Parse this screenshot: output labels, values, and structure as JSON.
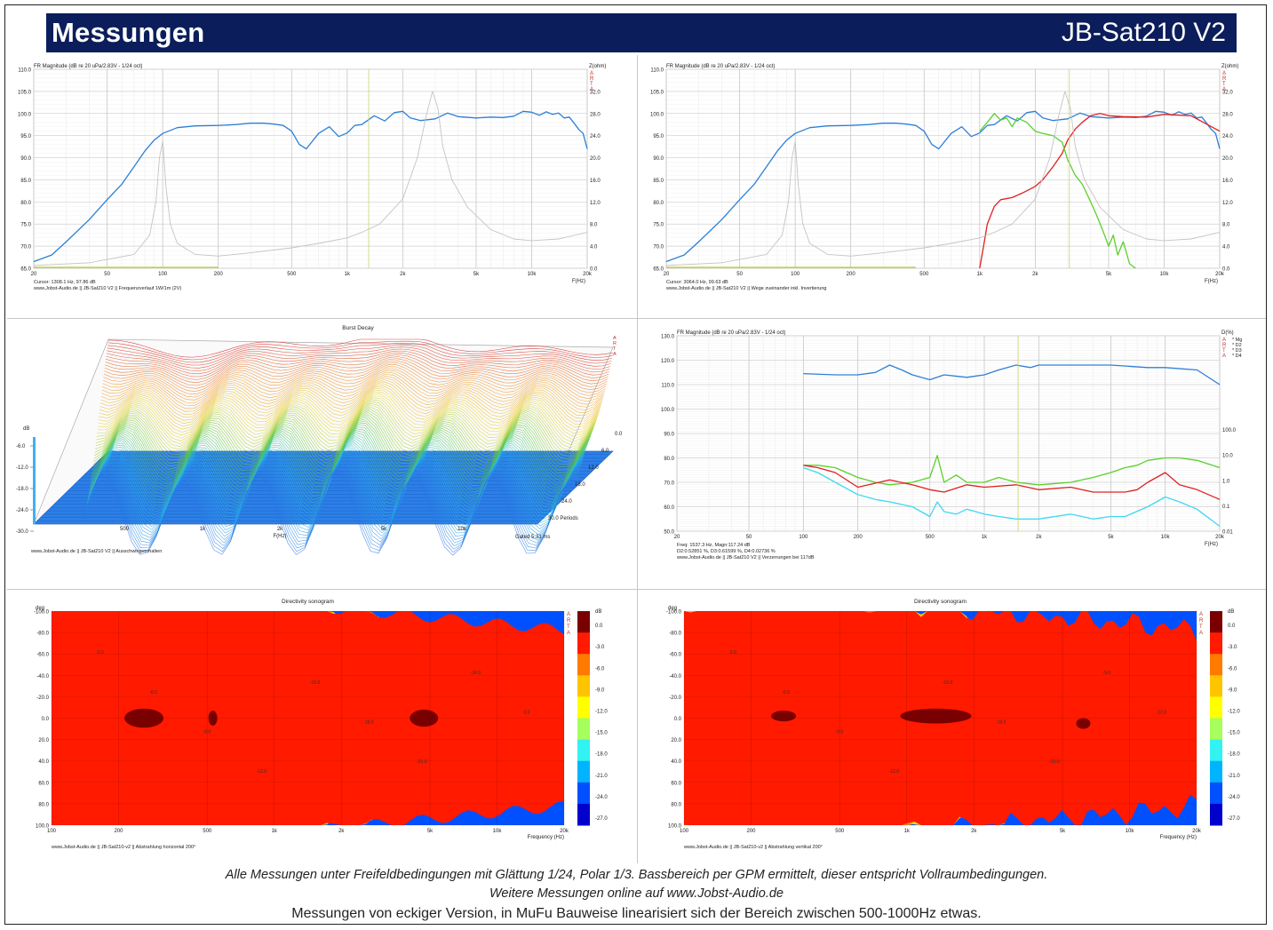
{
  "header": {
    "title": "Messungen",
    "model": "JB-Sat210 V2"
  },
  "colors": {
    "header_bg": "#0b1e5b",
    "fr": "#2e7fd6",
    "imp": "#c4c4c4",
    "red": "#e02020",
    "green": "#5ad02a",
    "cyan": "#3fd8f0"
  },
  "footer": {
    "line1": "Alle Messungen unter Freifeldbedingungen mit Glättung 1/24, Polar 1/3. Bassbereich per GPM ermittelt, dieser entspricht Vollraumbedingungen.",
    "line2": "Weitere Messungen online auf www.Jobst-Audio.de",
    "line3": "Messungen von eckiger Version, in MuFu Bauweise linearisiert sich der Bereich zwischen 500-1000Hz etwas."
  },
  "chart_data": [
    {
      "type": "line",
      "title": "FR Magnitude (dB re 20 uPa/2.83V - 1/24 oct)",
      "right_axis_title": "Z(ohm)",
      "xlabel": "F(Hz)",
      "x_ticks": [
        "20",
        "50",
        "100",
        "200",
        "500",
        "1k",
        "2k",
        "5k",
        "10k",
        "20k"
      ],
      "y_ticks": [
        "110.0",
        "105.0",
        "100.0",
        "95.0",
        "90.0",
        "85.0",
        "80.0",
        "75.0",
        "70.0",
        "65.0"
      ],
      "y2_ticks": [
        "32.0",
        "28.0",
        "24.0",
        "20.0",
        "16.0",
        "12.0",
        "8.0",
        "4.0",
        "0.0"
      ],
      "xlim": [
        20,
        20000
      ],
      "ylim": [
        65,
        110
      ],
      "y2lim": [
        0,
        36
      ],
      "scale_x": "log",
      "arta_mark": "A R T A",
      "cursor": "Cursor: 1308.1 Hz, 97.86 dB",
      "caption": "www.Jobst-Audio.de  ||  JB-Sat210 V2  ||  Frequenzverlauf 1W/1m (2V)",
      "series": [
        {
          "color": "#2e7fd6",
          "axis": "left",
          "x": [
            20,
            25,
            30,
            40,
            50,
            60,
            70,
            80,
            90,
            100,
            120,
            150,
            200,
            250,
            300,
            350,
            400,
            450,
            500,
            550,
            600,
            700,
            800,
            900,
            1000,
            1100,
            1200,
            1400,
            1600,
            1800,
            2000,
            2200,
            2500,
            3000,
            3500,
            4000,
            5000,
            6000,
            7000,
            8000,
            9000,
            10000,
            11000,
            12000,
            13000,
            14000,
            15000,
            16000,
            17000,
            18000,
            19000,
            20000
          ],
          "y": [
            66.5,
            68,
            71,
            76,
            80.5,
            84,
            88,
            91.5,
            94,
            95.5,
            96.8,
            97.2,
            97.3,
            97.5,
            97.8,
            97.8,
            97.6,
            97.3,
            96,
            93,
            92,
            95.5,
            97,
            94.8,
            95.6,
            97.3,
            97.5,
            99.5,
            98.3,
            100.2,
            100.5,
            99,
            98.4,
            98.8,
            100.1,
            99.3,
            99,
            99.2,
            99.1,
            99.4,
            100.5,
            100.3,
            99.6,
            100.4,
            99.8,
            100.1,
            99,
            99.2,
            97.8,
            96.4,
            95.5,
            92
          ]
        },
        {
          "color": "#c4c4c4",
          "axis": "right",
          "x": [
            20,
            40,
            70,
            85,
            92,
            96,
            100,
            104,
            110,
            120,
            150,
            200,
            300,
            500,
            700,
            1000,
            1200,
            1500,
            2000,
            2400,
            2700,
            2900,
            3100,
            3300,
            3700,
            4500,
            6000,
            8000,
            10000,
            14000,
            20000
          ],
          "y": [
            0.5,
            1,
            2.5,
            6,
            12,
            20,
            23,
            15,
            8,
            4.5,
            2.5,
            2.2,
            2.8,
            3.7,
            4.5,
            5.5,
            6.5,
            8,
            12.5,
            20,
            28,
            32,
            29,
            22,
            16,
            11,
            7,
            5.3,
            5,
            5.3,
            6.5
          ]
        }
      ]
    },
    {
      "type": "line",
      "title": "FR Magnitude (dB re 20 uPa/2.83V - 1/24 oct)",
      "right_axis_title": "Z(ohm)",
      "xlabel": "F(Hz)",
      "x_ticks": [
        "20",
        "50",
        "100",
        "200",
        "500",
        "1k",
        "2k",
        "5k",
        "10k",
        "20k"
      ],
      "y_ticks": [
        "110.0",
        "105.0",
        "100.0",
        "95.0",
        "90.0",
        "85.0",
        "80.0",
        "75.0",
        "70.0",
        "65.0"
      ],
      "y2_ticks": [
        "32.0",
        "28.0",
        "24.0",
        "20.0",
        "16.0",
        "12.0",
        "8.0",
        "4.0",
        "0.0"
      ],
      "xlim": [
        20,
        20000
      ],
      "ylim": [
        65,
        110
      ],
      "y2lim": [
        0,
        36
      ],
      "scale_x": "log",
      "arta_mark": "A R T A",
      "cursor": "Cursor: 3064.0 Hz, 99.63 dB",
      "caption": "www.Jobst-Audio.de  ||  JB-Sat210 V2  ||  Wege zueinander inkl. Invertierung",
      "series": [
        {
          "color": "#2e7fd6",
          "axis": "left",
          "x": [
            20,
            25,
            30,
            40,
            50,
            60,
            70,
            80,
            90,
            100,
            120,
            150,
            200,
            250,
            300,
            350,
            400,
            450,
            500,
            550,
            600,
            700,
            800,
            900,
            1000,
            1100,
            1200,
            1400,
            1600,
            1800,
            2000,
            2200,
            2500,
            3000,
            3500,
            4000,
            5000,
            6000,
            7000,
            8000,
            9000,
            10000,
            11000,
            12000,
            13000,
            14000,
            15000,
            16000,
            17000,
            18000,
            19000,
            20000
          ],
          "y": [
            66.5,
            68,
            71,
            76,
            80.5,
            84,
            88,
            91.5,
            94,
            95.5,
            96.8,
            97.2,
            97.3,
            97.5,
            97.8,
            97.8,
            97.6,
            97.3,
            96,
            93,
            92,
            95.5,
            97,
            94.8,
            95.6,
            97.3,
            97.5,
            99.5,
            98.3,
            100.2,
            100.5,
            99,
            98.4,
            98.8,
            100.1,
            99.3,
            99,
            99.2,
            99.1,
            99.4,
            100.5,
            100.3,
            99.6,
            100.4,
            99.8,
            100.1,
            99,
            99.2,
            97.8,
            96.4,
            95.5,
            92
          ]
        },
        {
          "color": "#e02020",
          "axis": "left",
          "x": [
            1000,
            1050,
            1100,
            1200,
            1300,
            1500,
            1700,
            2000,
            2200,
            2500,
            2800,
            3000,
            3300,
            3600,
            4000,
            4500,
            5000,
            6000,
            8000,
            10000,
            14000,
            20000
          ],
          "y": [
            65,
            70,
            75,
            79,
            80.5,
            81,
            82,
            83.5,
            85,
            88,
            91,
            94,
            96.5,
            98,
            99.5,
            100,
            99.5,
            99.3,
            99.2,
            99.8,
            99.5,
            96
          ]
        },
        {
          "color": "#5ad02a",
          "axis": "left",
          "x": [
            1000,
            1100,
            1200,
            1300,
            1400,
            1500,
            1600,
            1800,
            2000,
            2200,
            2500,
            2800,
            3000,
            3300,
            3600,
            4000,
            4300,
            4600,
            5000,
            5300,
            5600,
            6000,
            6500,
            7000
          ],
          "y": [
            96,
            98,
            100,
            98.5,
            99,
            97,
            99,
            98,
            96,
            95.5,
            95,
            93.5,
            89.5,
            86,
            84,
            80,
            77,
            74,
            70,
            72.5,
            68,
            71,
            66,
            65
          ]
        },
        {
          "color": "#c4c4c4",
          "axis": "right",
          "x": [
            20,
            40,
            70,
            85,
            92,
            96,
            100,
            104,
            110,
            120,
            150,
            200,
            300,
            500,
            700,
            1000,
            1200,
            1500,
            2000,
            2400,
            2700,
            2900,
            3100,
            3300,
            3700,
            4500,
            6000,
            8000,
            10000,
            14000,
            20000
          ],
          "y": [
            0.5,
            1,
            2.5,
            6,
            12,
            20,
            23,
            15,
            8,
            4.5,
            2.5,
            2.2,
            2.8,
            3.7,
            4.5,
            5.5,
            6.5,
            8,
            12.5,
            20,
            28,
            32,
            29,
            22,
            16,
            11,
            7,
            5.3,
            5,
            5.3,
            6.5
          ]
        }
      ]
    },
    {
      "type": "area",
      "title": "Burst Decay",
      "xlabel": "F(Hz)",
      "zlabel": "dB",
      "x_ticks": [
        "500",
        "1k",
        "2k",
        "5k",
        "10k"
      ],
      "z_ticks": [
        "-6.0",
        "-12.0",
        "-18.0",
        "-24.0",
        "-30.0"
      ],
      "depth_ticks": [
        "0.0",
        "6.0",
        "12.0",
        "18.0",
        "24.0",
        "30.0 Periods"
      ],
      "gated": "Gated 5.31 ms",
      "arta_mark": "A R T A",
      "caption": "www.Jobst-Audio.de  ||  JB-Sat210 V2  ||  Ausschwingverhalten"
    },
    {
      "type": "line",
      "title": "FR Magnitude (dB re 20 uPa/2.83V - 1/24 oct)",
      "right_axis_title": "D(%)",
      "xlabel": "F(Hz)",
      "x_ticks": [
        "20",
        "50",
        "100",
        "200",
        "500",
        "1k",
        "2k",
        "5k",
        "10k",
        "20k"
      ],
      "y_ticks": [
        "130.0",
        "120.0",
        "110.0",
        "100.0",
        "90.0",
        "80.0",
        "70.0",
        "60.0",
        "50.0"
      ],
      "y2_ticks": [
        "100.0",
        "10.0",
        "1.0",
        "0.1",
        "0.01"
      ],
      "xlim": [
        20,
        20000
      ],
      "ylim": [
        50,
        130
      ],
      "scale_x": "log",
      "legend": [
        "Mg",
        "D2",
        "D3",
        "D4"
      ],
      "arta_mark": "A R T A",
      "cursor": "Freq: 1537.3 Hz, Magn:117.24 dB",
      "cursor2": "D2:0.52851 %, D3:0.61599 %, D4:0.02736 %",
      "caption": "www.Jobst-Audio.de  ||  JB-Sat210 V2  ||  Verzerrungen bei 117dB",
      "series": [
        {
          "name": "Mg",
          "color": "#2e7fd6",
          "x": [
            100,
            150,
            200,
            250,
            300,
            350,
            400,
            500,
            600,
            800,
            1000,
            1200,
            1500,
            1800,
            2000,
            3000,
            5000,
            8000,
            10000,
            15000,
            20000
          ],
          "y": [
            114.5,
            114,
            114,
            115,
            118,
            116,
            114,
            112,
            114,
            113,
            114,
            116,
            118,
            117,
            118,
            118,
            118,
            117,
            117,
            116,
            110
          ]
        },
        {
          "name": "D2",
          "color": "#5ad02a",
          "x": [
            100,
            120,
            150,
            200,
            250,
            300,
            400,
            500,
            550,
            600,
            700,
            800,
            1000,
            1200,
            1500,
            2000,
            3000,
            4000,
            5000,
            6000,
            7000,
            8000,
            10000,
            12000,
            15000,
            20000
          ],
          "y": [
            77,
            77,
            76,
            72,
            70,
            69,
            70,
            72,
            81,
            70,
            73,
            70,
            70,
            72,
            70,
            69,
            70,
            72,
            74,
            76,
            77,
            79,
            80,
            80,
            79,
            76
          ]
        },
        {
          "name": "D3",
          "color": "#e02020",
          "x": [
            100,
            120,
            150,
            200,
            300,
            400,
            500,
            600,
            800,
            1000,
            1500,
            2000,
            3000,
            4000,
            5000,
            6000,
            7000,
            8000,
            10000,
            12000,
            15000,
            20000
          ],
          "y": [
            77,
            76,
            74,
            68,
            71,
            69,
            67,
            66,
            69,
            68,
            69,
            67,
            68,
            66,
            66,
            66,
            67,
            70,
            74,
            69,
            67,
            63
          ]
        },
        {
          "name": "D4",
          "color": "#3fd8f0",
          "x": [
            100,
            120,
            150,
            200,
            250,
            300,
            400,
            500,
            550,
            600,
            700,
            800,
            1000,
            1200,
            1500,
            2000,
            3000,
            4000,
            5000,
            6000,
            8000,
            10000,
            12000,
            15000,
            20000
          ],
          "y": [
            76,
            74,
            70,
            65,
            63,
            62,
            60,
            56,
            62,
            58,
            57,
            59,
            57,
            56,
            55,
            55,
            57,
            55,
            56,
            56,
            60,
            64,
            62,
            59,
            52
          ]
        }
      ]
    },
    {
      "type": "heatmap",
      "title": "Directivity sonogram",
      "xlabel": "Frequency (Hz)",
      "ylabel": "deg",
      "x_ticks": [
        "100",
        "200",
        "500",
        "1k",
        "2k",
        "5k",
        "10k",
        "20k"
      ],
      "y_ticks": [
        "-100.0",
        "-80.0",
        "-60.0",
        "-40.0",
        "-20.0",
        "0.0",
        "20.0",
        "40.0",
        "60.0",
        "80.0",
        "100.0"
      ],
      "colorbar_label": "dB",
      "colorbar_ticks": [
        "0.0",
        "-3.0",
        "-6.0",
        "-9.0",
        "-12.0",
        "-15.0",
        "-18.0",
        "-21.0",
        "-24.0",
        "-27.0"
      ],
      "colorbar_colors": [
        "#7a0000",
        "#ff1a00",
        "#ff7a00",
        "#ffc400",
        "#ffff00",
        "#a6ff5c",
        "#33f2f2",
        "#00b4ff",
        "#0050ff",
        "#0000cc"
      ],
      "contour_labels": [
        "-3.0",
        "-6.0",
        "-9.0",
        "-12.0",
        "-15.0",
        "-18.0",
        "-21.0",
        "-24.0",
        "0.0"
      ],
      "arta_mark": "A R T A",
      "caption": "www.Jobst-Audio.de  ||  JB-Sat210-v2  ||  Abstrahlung horizontal 200°"
    },
    {
      "type": "heatmap",
      "title": "Directivity sonogram",
      "xlabel": "Frequency (Hz)",
      "ylabel": "deg",
      "x_ticks": [
        "100",
        "200",
        "500",
        "1k",
        "2k",
        "5k",
        "10k",
        "20k"
      ],
      "y_ticks": [
        "-100.0",
        "-80.0",
        "-60.0",
        "-40.0",
        "-20.0",
        "0.0",
        "20.0",
        "40.0",
        "60.0",
        "80.0",
        "100.0"
      ],
      "colorbar_label": "dB",
      "colorbar_ticks": [
        "0.0",
        "-3.0",
        "-6.0",
        "-9.0",
        "-12.0",
        "-15.0",
        "-18.0",
        "-21.0",
        "-24.0",
        "-27.0"
      ],
      "colorbar_colors": [
        "#7a0000",
        "#ff1a00",
        "#ff7a00",
        "#ffc400",
        "#ffff00",
        "#a6ff5c",
        "#33f2f2",
        "#00b4ff",
        "#0050ff",
        "#0000cc"
      ],
      "contour_labels": [
        "-3.0",
        "-6.0",
        "-9.0",
        "-12.0",
        "-15.0",
        "-18.0",
        "-21.0",
        "-9.0",
        "-12.0"
      ],
      "arta_mark": "A R T A",
      "caption": "www.Jobst-Audio.de  ||  JB-Sat210-v2  ||  Abstrahlung vertikal 200°"
    }
  ]
}
